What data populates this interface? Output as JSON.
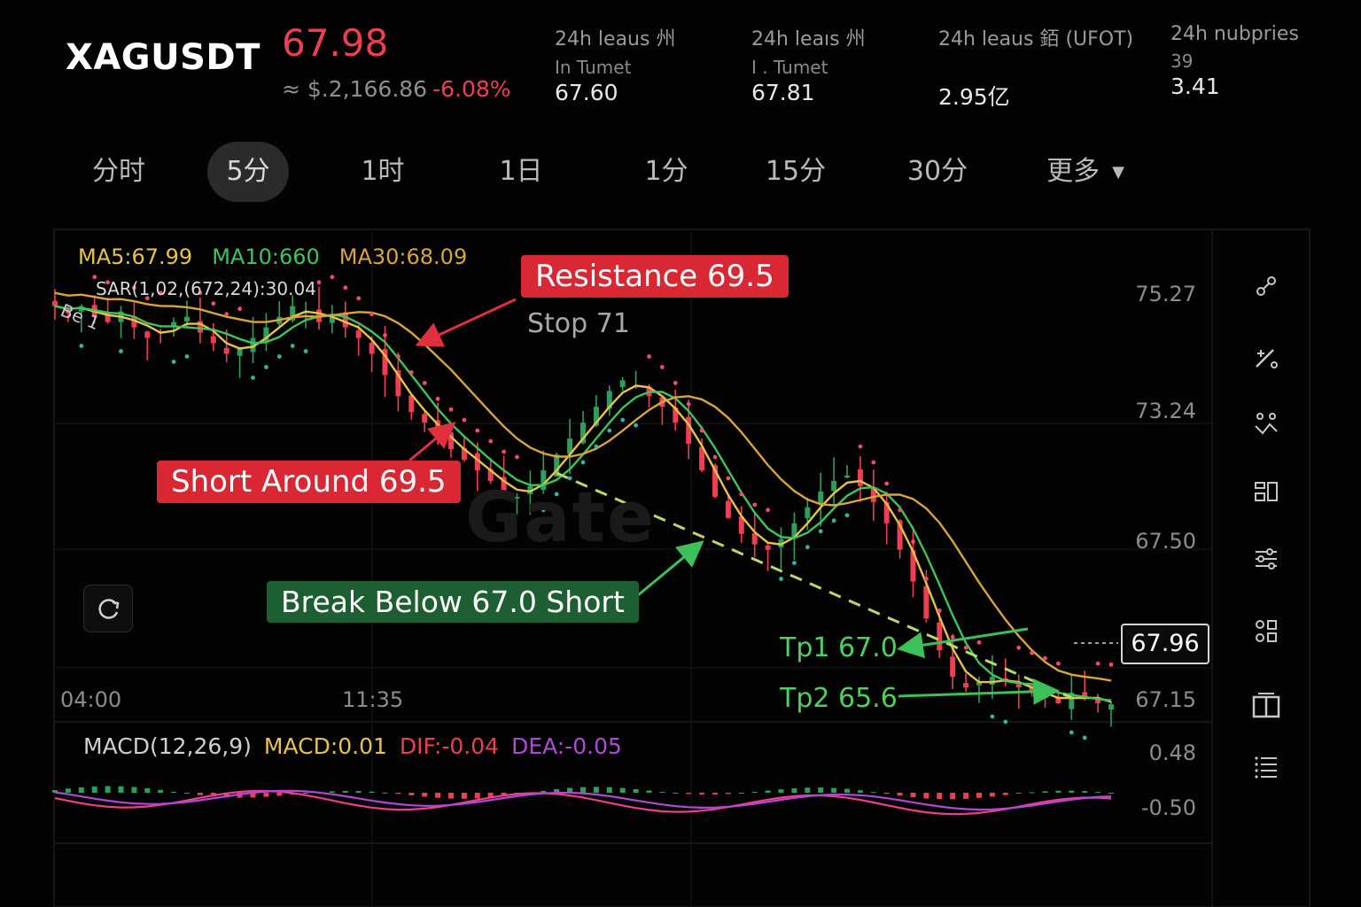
{
  "header": {
    "symbol": "XAGUSDT",
    "price": "67.98",
    "price_sub": "≈ $.2,166.86",
    "change": "-6.08%",
    "stats": [
      {
        "label1": "24h leaus 州",
        "label2": "In Tumet",
        "value": "67.60"
      },
      {
        "label1": "24h leaıs 州",
        "label2": "I . Tumet",
        "value": "67.81"
      },
      {
        "label1": "24h leaus 銆 (UFOT)",
        "label2": "",
        "value": "2.95亿"
      },
      {
        "label1": "24h nubpries",
        "label2": "39",
        "value": "3.41"
      }
    ]
  },
  "tabs": [
    {
      "label": "分时",
      "active": false
    },
    {
      "label": "5分",
      "active": true
    },
    {
      "label": "1时",
      "active": false
    },
    {
      "label": "1日",
      "active": false
    },
    {
      "label": "1分",
      "active": false
    },
    {
      "label": "15分",
      "active": false
    },
    {
      "label": "30分",
      "active": false
    },
    {
      "label": "更多",
      "active": false,
      "dropdown": true
    }
  ],
  "indicators": {
    "ma5": "MA5:67.99",
    "ma10": "MA10:660",
    "ma30": "MA30:68.09",
    "sar": "SAR(1,02,(672,24):30.04",
    "bei": "Be 1"
  },
  "annotations": {
    "resistance": "Resistance 69.5",
    "stop": "Stop 71",
    "short_around": "Short Around 69.5",
    "break_below": "Break Below 67.0 Short",
    "tp1": "Tp1 67.0",
    "tp2": "Tp2 65.6"
  },
  "watermark": "Gate",
  "last_price": "67.96",
  "macd": {
    "label": "MACD(12,26,9)",
    "macd": "MACD:0.01",
    "dif": "DIF:-0.04",
    "dea": "DEA:-0.05"
  },
  "colors": {
    "up": "#2e9e5b",
    "down": "#ef3e52",
    "ma5": "#e6c34a",
    "ma10": "#3ec45c",
    "ma30": "#d9a53a",
    "sar": "#ef4b6a",
    "dea": "#b048d8",
    "trendline": "#b8d86a"
  },
  "sidebar_tools": [
    "link-icon",
    "draw-pen-icon",
    "crosshair-icon",
    "indicator-icon",
    "settings-sliders-icon",
    "layout-icon",
    "book-icon",
    "list-icon"
  ],
  "chart_data": {
    "type": "candlestick",
    "y_ticks": [
      "75.27",
      "73.24",
      "67.50",
      "67.15"
    ],
    "x_ticks": [
      "04:00",
      "11:35"
    ],
    "macd_y_ticks": [
      "0.48",
      "-0.50"
    ],
    "ylim": [
      66.9,
      75.9
    ],
    "close": [
      74.5,
      74.4,
      74.5,
      74.3,
      74.2,
      74.4,
      74.1,
      73.9,
      74.0,
      74.2,
      74.3,
      74.0,
      73.8,
      73.6,
      73.7,
      73.9,
      74.1,
      74.3,
      74.5,
      74.4,
      74.2,
      74.3,
      74.1,
      73.9,
      73.6,
      73.2,
      72.8,
      72.5,
      72.3,
      72.0,
      71.8,
      71.6,
      71.4,
      71.2,
      71.0,
      70.9,
      71.1,
      71.4,
      71.7,
      72.0,
      72.3,
      72.6,
      72.9,
      73.1,
      73.0,
      72.8,
      72.6,
      72.3,
      71.9,
      71.4,
      70.9,
      70.5,
      70.2,
      70.0,
      69.9,
      70.1,
      70.4,
      70.7,
      71.0,
      71.2,
      71.3,
      71.1,
      70.8,
      70.4,
      69.9,
      69.3,
      68.6,
      68.0,
      67.5,
      67.3,
      67.4,
      67.5,
      67.4,
      67.3,
      67.2,
      67.1,
      67.0,
      67.2,
      67.1,
      67.0,
      66.98
    ]
  }
}
